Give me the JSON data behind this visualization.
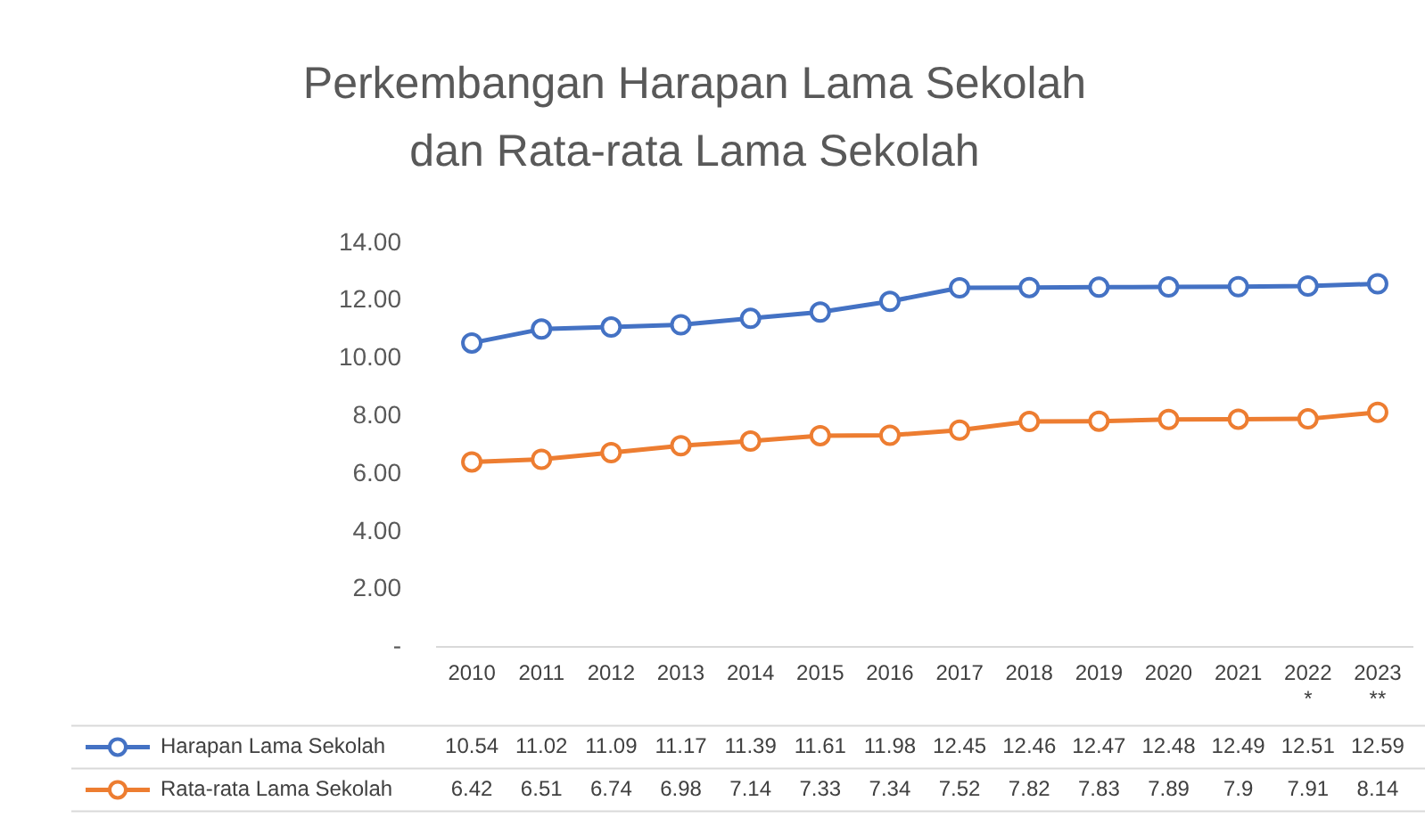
{
  "chart_data": {
    "type": "line",
    "title": "Perkembangan Harapan Lama Sekolah dan Rata-rata Lama Sekolah",
    "categories": [
      "2010",
      "2011",
      "2012",
      "2013",
      "2014",
      "2015",
      "2016",
      "2017",
      "2018",
      "2019",
      "2020",
      "2021",
      "2022 *",
      "2023 **"
    ],
    "series": [
      {
        "name": "Harapan Lama Sekolah",
        "color": "#4472c4",
        "values": [
          10.54,
          11.02,
          11.09,
          11.17,
          11.39,
          11.61,
          11.98,
          12.45,
          12.46,
          12.47,
          12.48,
          12.49,
          12.51,
          12.59
        ]
      },
      {
        "name": "Rata-rata Lama Sekolah",
        "color": "#ed7d31",
        "values": [
          6.42,
          6.51,
          6.74,
          6.98,
          7.14,
          7.33,
          7.34,
          7.52,
          7.82,
          7.83,
          7.89,
          7.9,
          7.91,
          8.14
        ]
      }
    ],
    "ylim": [
      0,
      14
    ],
    "yticks": [
      {
        "value": 0,
        "label": "-"
      },
      {
        "value": 2,
        "label": "2.00"
      },
      {
        "value": 4,
        "label": "4.00"
      },
      {
        "value": 6,
        "label": "6.00"
      },
      {
        "value": 8,
        "label": "8.00"
      },
      {
        "value": 10,
        "label": "10.00"
      },
      {
        "value": 12,
        "label": "12.00"
      },
      {
        "value": 14,
        "label": "14.00"
      }
    ],
    "grid": false,
    "legend": "bottom",
    "marker": "circle",
    "line_style": "solid",
    "data_labels": true
  }
}
